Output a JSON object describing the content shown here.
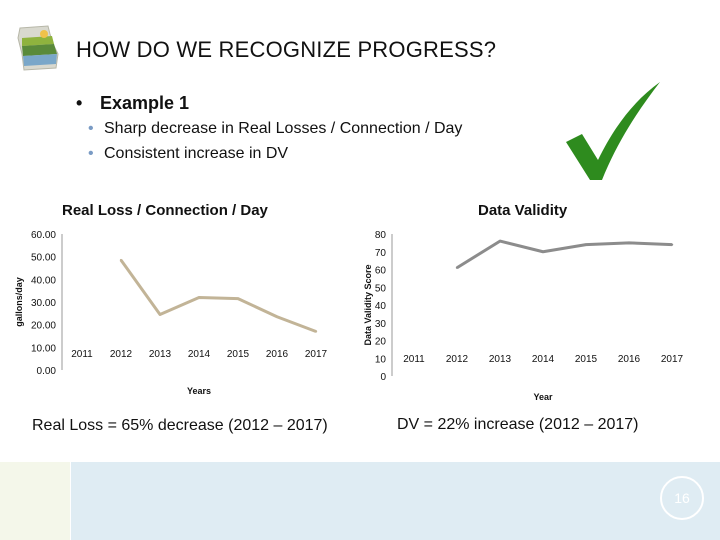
{
  "header": {
    "title": "HOW DO WE RECOGNIZE PROGRESS?"
  },
  "content": {
    "bullet": "Example 1",
    "sub_bullets": [
      "Sharp decrease in Real Losses / Connection / Day",
      "Consistent increase in DV"
    ]
  },
  "chart_data": [
    {
      "type": "line",
      "title": "Real Loss / Connection / Day",
      "xlabel": "Years",
      "ylabel": "gallons/day",
      "categories": [
        "2011",
        "2012",
        "2013",
        "2014",
        "2015",
        "2016",
        "2017"
      ],
      "y_ticks": [
        "0.00",
        "10.00",
        "20.00",
        "30.00",
        "40.00",
        "50.00",
        "60.00"
      ],
      "ylim": [
        0,
        60
      ],
      "series": [
        {
          "values": [
            null,
            48.5,
            24.5,
            32,
            31.5,
            23.5,
            17
          ],
          "color": "#c2b497"
        }
      ],
      "grid": false
    },
    {
      "type": "line",
      "title": "Data Validity",
      "xlabel": "Year",
      "ylabel": "Data Validity Score",
      "categories": [
        "2011",
        "2012",
        "2013",
        "2014",
        "2015",
        "2016",
        "2017"
      ],
      "y_ticks": [
        "0",
        "10",
        "20",
        "30",
        "40",
        "50",
        "60",
        "70",
        "80"
      ],
      "ylim": [
        0,
        80
      ],
      "series": [
        {
          "values": [
            null,
            61,
            76,
            70,
            74,
            75,
            74
          ],
          "color": "#8c8c8c"
        }
      ],
      "grid": false
    }
  ],
  "captions": {
    "left": "Real Loss = 65% decrease (2012 – 2017)",
    "right": "DV = 22% increase (2012 – 2017)"
  },
  "footer": {
    "page_number": "16"
  },
  "colors": {
    "checkmark": "#2e8b1e",
    "bullet_accent": "#7a9bc4",
    "footer_band": "#dfecf3"
  },
  "icons": {
    "logo": "georgia-state-logo-icon",
    "checkmark": "checkmark-icon"
  }
}
